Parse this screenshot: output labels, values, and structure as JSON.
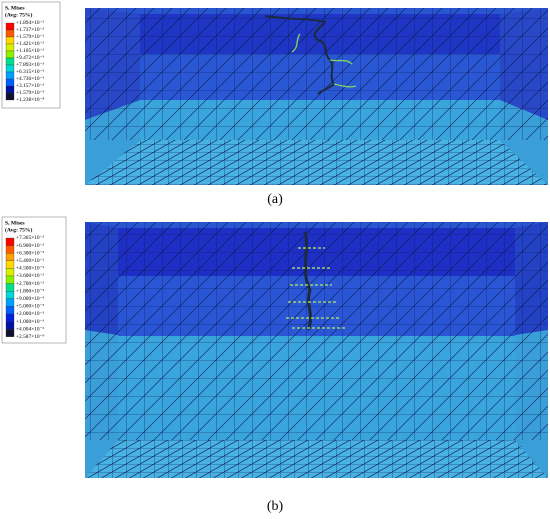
{
  "panels": [
    {
      "legend": {
        "title": "S, Mises",
        "subtitle": "(Avg: 75%)",
        "labels": [
          "+1.894×10⁻²",
          "+1.737×10⁻²",
          "+1.579×10⁻²",
          "+1.421×10⁻²",
          "+1.105×10⁻²",
          "+9.472×10⁻³",
          "+7.893×10⁻³",
          "+6.315×10⁻³",
          "+4.736×10⁻³",
          "+3.157×10⁻³",
          "+1.579×10⁻³",
          "+1.238×10⁻⁸"
        ]
      },
      "caption": "(a)"
    },
    {
      "legend": {
        "title": "S, Mises",
        "subtitle": "(Avg: 75%)",
        "labels": [
          "+7.305×10⁻²",
          "+6.900×10⁻²",
          "+6.300×10⁻²",
          "+5.400×10⁻²",
          "+4.500×10⁻²",
          "+3.600×10⁻²",
          "+2.700×10⁻²",
          "+1.800×10⁻²",
          "+9.000×10⁻³",
          "+5.000×10⁻³",
          "+2.000×10⁻³",
          "+1.000×10⁻³",
          "+4.004×10⁻⁶",
          "+2.587×10⁻⁹"
        ]
      },
      "caption": "(b)"
    }
  ]
}
